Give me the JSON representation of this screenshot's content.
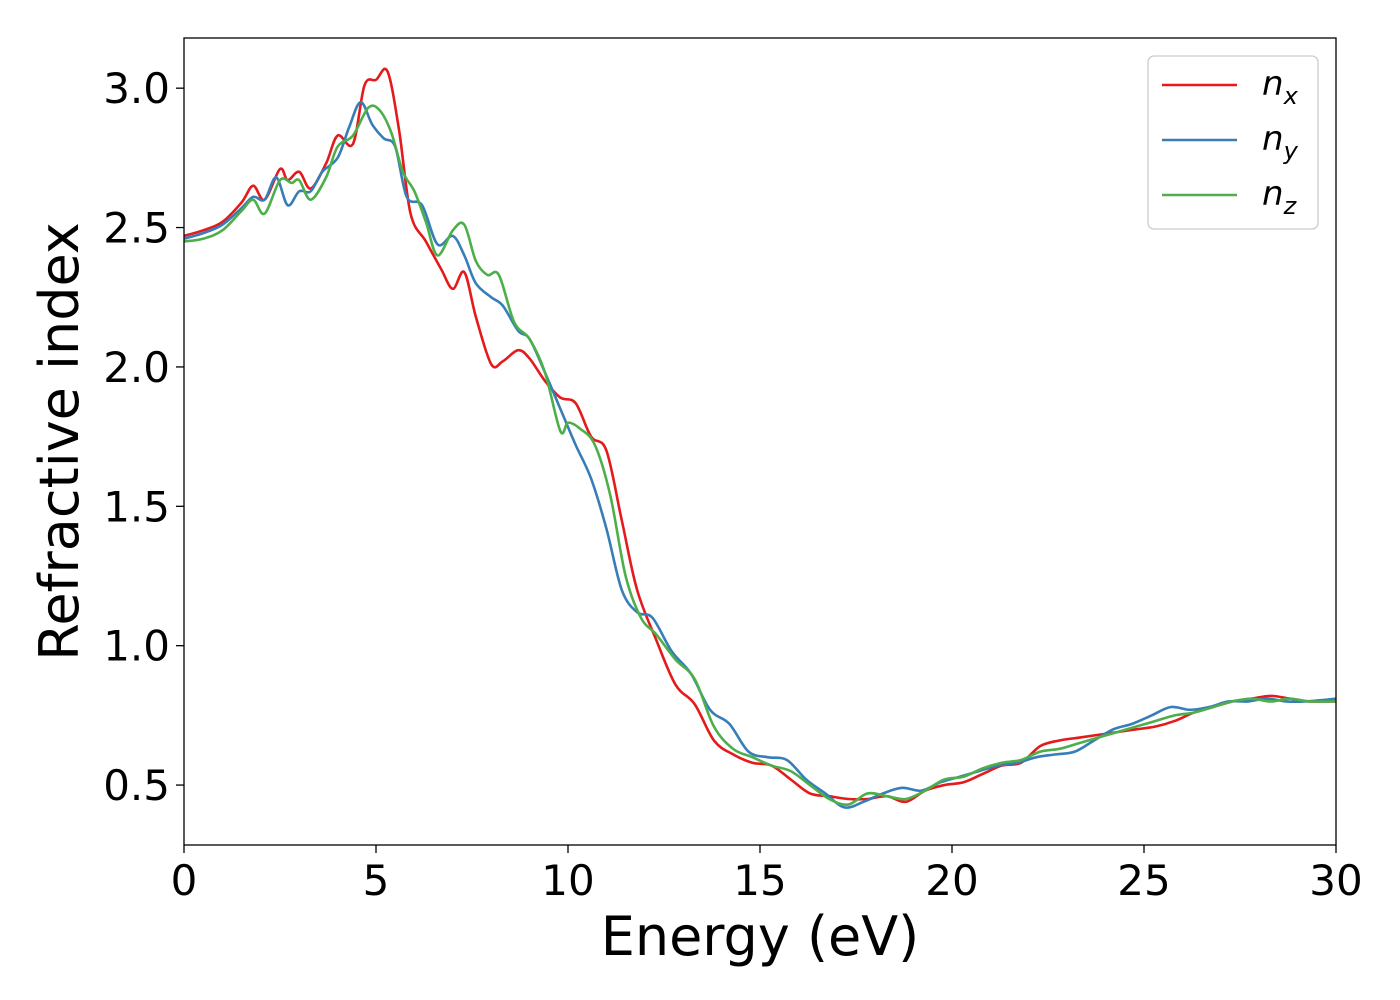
{
  "chart_data": {
    "type": "line",
    "xlabel": "Energy (eV)",
    "ylabel": "Refractive index",
    "xlim": [
      0,
      30
    ],
    "ylim": [
      0.285,
      3.18
    ],
    "xticks": [
      0,
      5,
      10,
      15,
      20,
      25,
      30
    ],
    "xtick_labels": [
      "0",
      "5",
      "10",
      "15",
      "20",
      "25",
      "30"
    ],
    "yticks": [
      0.5,
      1.0,
      1.5,
      2.0,
      2.5,
      3.0
    ],
    "ytick_labels": [
      "0.5",
      "1.0",
      "1.5",
      "2.0",
      "2.5",
      "3.0"
    ],
    "grid": false,
    "legend_position": "top-right",
    "series": [
      {
        "name": "n",
        "subscript": "x",
        "color": "#e41a1c",
        "x": [
          0,
          0.5,
          1.0,
          1.5,
          1.8,
          2.1,
          2.5,
          2.7,
          3.0,
          3.3,
          3.7,
          4.0,
          4.4,
          4.7,
          5.0,
          5.3,
          5.6,
          5.9,
          6.3,
          6.7,
          7.0,
          7.3,
          7.6,
          8.0,
          8.3,
          8.7,
          9.0,
          9.4,
          9.8,
          10.2,
          10.6,
          11.0,
          11.4,
          11.8,
          12.3,
          12.8,
          13.3,
          13.8,
          14.3,
          14.8,
          15.3,
          15.8,
          16.3,
          16.8,
          17.3,
          17.8,
          18.3,
          18.8,
          19.3,
          19.8,
          20.3,
          20.8,
          21.3,
          21.8,
          22.3,
          22.8,
          23.3,
          23.8,
          24.3,
          24.8,
          25.3,
          25.8,
          26.3,
          26.8,
          27.3,
          27.8,
          28.3,
          28.8,
          29.3,
          30
        ],
        "y": [
          2.47,
          2.49,
          2.52,
          2.59,
          2.65,
          2.6,
          2.71,
          2.67,
          2.7,
          2.64,
          2.73,
          2.83,
          2.8,
          3.01,
          3.03,
          3.06,
          2.85,
          2.55,
          2.45,
          2.35,
          2.28,
          2.34,
          2.18,
          2.01,
          2.02,
          2.06,
          2.03,
          1.95,
          1.89,
          1.87,
          1.75,
          1.7,
          1.45,
          1.2,
          1.02,
          0.86,
          0.79,
          0.66,
          0.61,
          0.58,
          0.57,
          0.52,
          0.47,
          0.46,
          0.45,
          0.45,
          0.46,
          0.44,
          0.48,
          0.5,
          0.51,
          0.54,
          0.57,
          0.58,
          0.64,
          0.66,
          0.67,
          0.68,
          0.69,
          0.7,
          0.71,
          0.73,
          0.76,
          0.78,
          0.8,
          0.81,
          0.82,
          0.81,
          0.8,
          0.8
        ]
      },
      {
        "name": "n",
        "subscript": "y",
        "color": "#377eb8",
        "x": [
          0,
          0.5,
          1.0,
          1.5,
          1.8,
          2.1,
          2.4,
          2.7,
          3.0,
          3.3,
          3.6,
          4.0,
          4.3,
          4.6,
          4.9,
          5.2,
          5.5,
          5.8,
          6.2,
          6.6,
          7.0,
          7.3,
          7.6,
          8.0,
          8.3,
          8.7,
          9.0,
          9.4,
          9.8,
          10.2,
          10.6,
          11.0,
          11.4,
          11.8,
          12.2,
          12.7,
          13.2,
          13.7,
          14.2,
          14.7,
          15.2,
          15.7,
          16.2,
          16.7,
          17.2,
          17.7,
          18.2,
          18.7,
          19.2,
          19.7,
          20.2,
          20.7,
          21.2,
          21.7,
          22.2,
          22.7,
          23.2,
          23.7,
          24.2,
          24.7,
          25.2,
          25.7,
          26.2,
          26.7,
          27.2,
          27.7,
          28.2,
          28.7,
          29.2,
          30
        ],
        "y": [
          2.46,
          2.48,
          2.51,
          2.57,
          2.61,
          2.6,
          2.68,
          2.58,
          2.63,
          2.63,
          2.7,
          2.75,
          2.86,
          2.95,
          2.87,
          2.82,
          2.79,
          2.61,
          2.58,
          2.44,
          2.47,
          2.4,
          2.3,
          2.25,
          2.22,
          2.13,
          2.1,
          1.98,
          1.85,
          1.72,
          1.6,
          1.42,
          1.2,
          1.12,
          1.1,
          0.98,
          0.9,
          0.77,
          0.72,
          0.62,
          0.6,
          0.59,
          0.52,
          0.47,
          0.42,
          0.44,
          0.47,
          0.49,
          0.48,
          0.51,
          0.53,
          0.55,
          0.57,
          0.58,
          0.6,
          0.61,
          0.62,
          0.66,
          0.7,
          0.72,
          0.75,
          0.78,
          0.77,
          0.78,
          0.8,
          0.8,
          0.81,
          0.8,
          0.8,
          0.81
        ]
      },
      {
        "name": "n",
        "subscript": "z",
        "color": "#4daf4a",
        "x": [
          0,
          0.5,
          1.0,
          1.5,
          1.8,
          2.1,
          2.5,
          2.8,
          3.0,
          3.3,
          3.7,
          4.0,
          4.4,
          4.8,
          5.1,
          5.4,
          5.7,
          6.0,
          6.3,
          6.6,
          7.0,
          7.3,
          7.6,
          7.9,
          8.2,
          8.6,
          9.0,
          9.4,
          9.8,
          10.0,
          10.3,
          10.7,
          11.1,
          11.5,
          11.9,
          12.3,
          12.8,
          13.3,
          13.8,
          14.3,
          14.8,
          15.3,
          15.8,
          16.3,
          16.8,
          17.3,
          17.8,
          18.3,
          18.8,
          19.3,
          19.8,
          20.3,
          20.8,
          21.3,
          21.8,
          22.3,
          22.8,
          23.3,
          23.8,
          24.3,
          24.8,
          25.3,
          25.8,
          26.3,
          26.8,
          27.3,
          27.8,
          28.3,
          28.8,
          29.3,
          30
        ],
        "y": [
          2.45,
          2.46,
          2.49,
          2.56,
          2.6,
          2.55,
          2.67,
          2.66,
          2.67,
          2.6,
          2.68,
          2.79,
          2.83,
          2.93,
          2.92,
          2.84,
          2.7,
          2.63,
          2.52,
          2.4,
          2.49,
          2.51,
          2.38,
          2.33,
          2.33,
          2.16,
          2.1,
          1.98,
          1.77,
          1.8,
          1.78,
          1.72,
          1.54,
          1.25,
          1.1,
          1.04,
          0.95,
          0.88,
          0.71,
          0.63,
          0.6,
          0.57,
          0.55,
          0.5,
          0.45,
          0.43,
          0.47,
          0.46,
          0.45,
          0.48,
          0.52,
          0.53,
          0.56,
          0.58,
          0.59,
          0.62,
          0.63,
          0.65,
          0.67,
          0.69,
          0.71,
          0.73,
          0.75,
          0.76,
          0.78,
          0.8,
          0.81,
          0.8,
          0.81,
          0.8,
          0.8
        ]
      }
    ]
  }
}
